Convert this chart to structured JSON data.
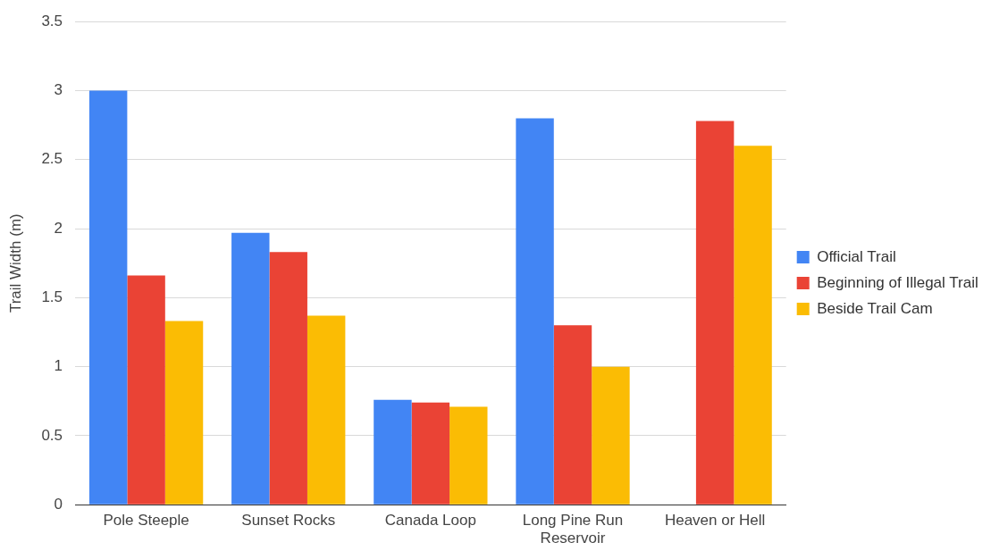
{
  "chart_data": {
    "type": "bar",
    "ylabel": "Trail Width (m)",
    "categories": [
      "Pole Steeple",
      "Sunset Rocks",
      "Canada Loop",
      "Long Pine Run Reservoir",
      "Heaven or Hell"
    ],
    "series": [
      {
        "name": "Official Trail",
        "color": "#4285f4",
        "values": [
          3.0,
          1.97,
          0.76,
          2.8,
          null
        ]
      },
      {
        "name": "Beginning of Illegal Trail",
        "color": "#ea4335",
        "values": [
          1.66,
          1.83,
          0.74,
          1.3,
          2.78
        ]
      },
      {
        "name": "Beside Trail Cam",
        "color": "#fbbc04",
        "values": [
          1.33,
          1.37,
          0.71,
          1.0,
          2.6
        ]
      }
    ],
    "ylim": [
      0,
      3.5
    ],
    "yticks": [
      0,
      0.5,
      1,
      1.5,
      2,
      2.5,
      3,
      3.5
    ],
    "grid": "y",
    "legend": "right"
  }
}
